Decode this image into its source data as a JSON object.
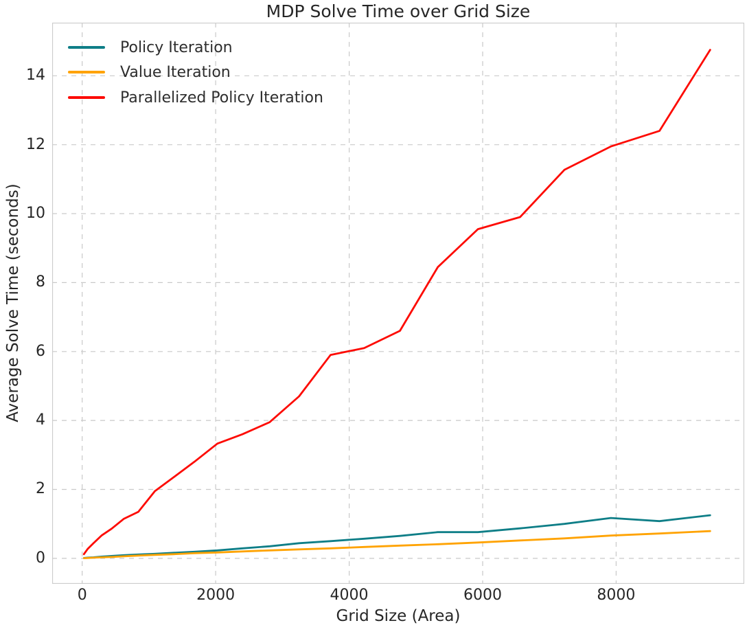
{
  "chart_data": {
    "type": "line",
    "title": "MDP Solve Time over Grid Size",
    "xlabel": "Grid Size (Area)",
    "ylabel": "Average Solve Time (seconds)",
    "xlim": [
      -450,
      9920
    ],
    "ylim": [
      -0.74,
      15.54
    ],
    "grid": "dashed",
    "legend_position": "upper left",
    "xticks": {
      "values": [
        0,
        2000,
        4000,
        6000,
        8000
      ],
      "labels": [
        "0",
        "2000",
        "4000",
        "6000",
        "8000"
      ]
    },
    "yticks": {
      "values": [
        0,
        2,
        4,
        6,
        8,
        10,
        12,
        14
      ],
      "labels": [
        "0",
        "2",
        "4",
        "6",
        "8",
        "10",
        "12",
        "14"
      ]
    },
    "x": [
      25,
      81,
      169,
      289,
      441,
      625,
      841,
      1089,
      1369,
      1681,
      2025,
      2401,
      2809,
      3249,
      3721,
      4225,
      4761,
      5329,
      5929,
      6561,
      7225,
      7921,
      8649,
      9409
    ],
    "series": [
      {
        "name": "Policy Iteration",
        "color": "#0e7e87",
        "values": [
          0.01,
          0.02,
          0.03,
          0.05,
          0.07,
          0.09,
          0.11,
          0.13,
          0.16,
          0.19,
          0.23,
          0.29,
          0.35,
          0.44,
          0.5,
          0.57,
          0.65,
          0.76,
          0.76,
          0.87,
          1.0,
          1.17,
          1.08,
          1.25
        ]
      },
      {
        "name": "Value Iteration",
        "color": "#ffa302",
        "values": [
          0.005,
          0.01,
          0.02,
          0.03,
          0.04,
          0.06,
          0.08,
          0.1,
          0.12,
          0.15,
          0.17,
          0.2,
          0.23,
          0.26,
          0.29,
          0.33,
          0.37,
          0.41,
          0.46,
          0.52,
          0.58,
          0.66,
          0.72,
          0.79
        ]
      },
      {
        "name": "Parallelized Policy Iteration",
        "color": "#fd0b04",
        "values": [
          0.12,
          0.27,
          0.44,
          0.66,
          0.86,
          1.15,
          1.35,
          1.95,
          2.35,
          2.8,
          3.33,
          3.6,
          3.95,
          4.7,
          5.9,
          6.1,
          6.6,
          8.45,
          9.55,
          9.9,
          11.27,
          11.95,
          12.4,
          14.75
        ]
      }
    ]
  }
}
